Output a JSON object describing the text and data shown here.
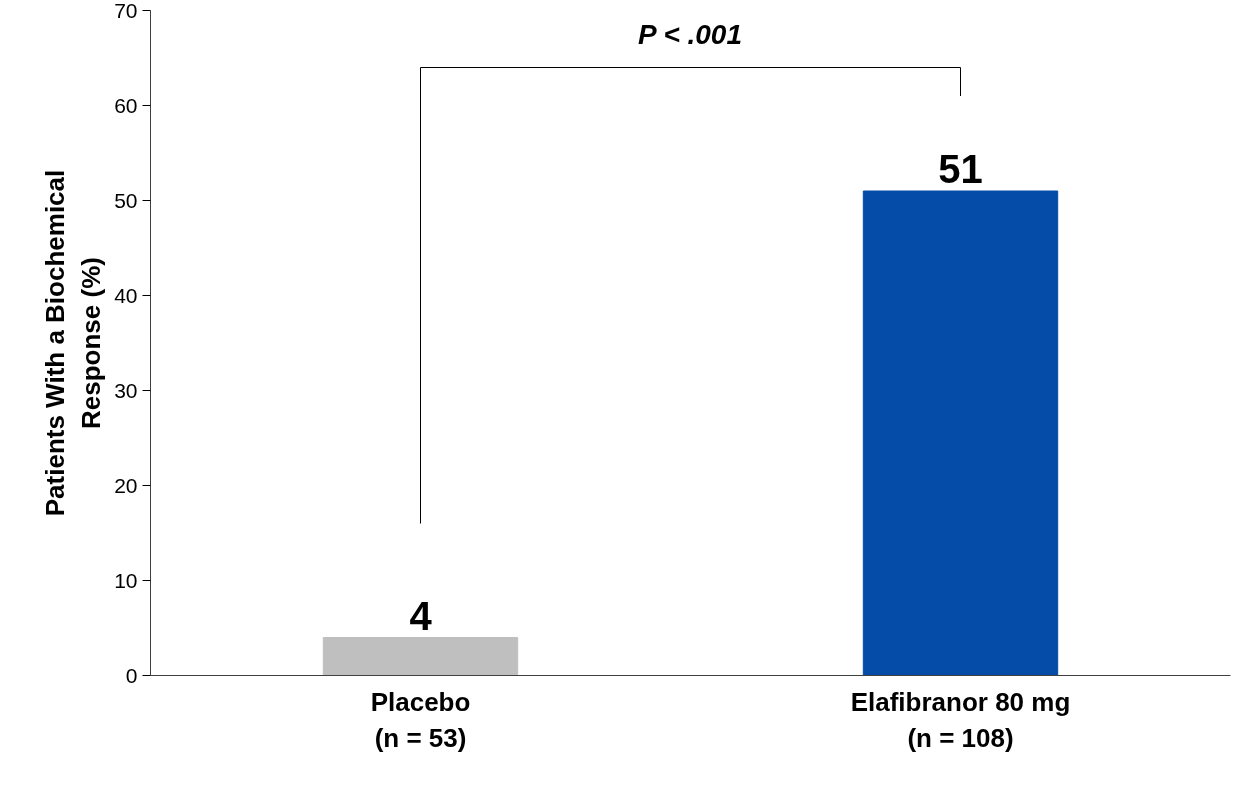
{
  "chart_data": {
    "type": "bar",
    "ylabel": "Patients With a Biochemical Response (%)",
    "categories": [
      "Placebo\n(n = 53)",
      "Elafibranor 80 mg\n(n = 108)"
    ],
    "values": [
      4,
      51
    ],
    "colors": [
      "#bfbfbf",
      "#054ca8"
    ],
    "ylim": [
      0,
      70
    ],
    "yticks": [
      0,
      10,
      20,
      30,
      40,
      50,
      60,
      70
    ],
    "data_labels": true,
    "grid": false,
    "annotations": [
      "P < .001"
    ]
  }
}
